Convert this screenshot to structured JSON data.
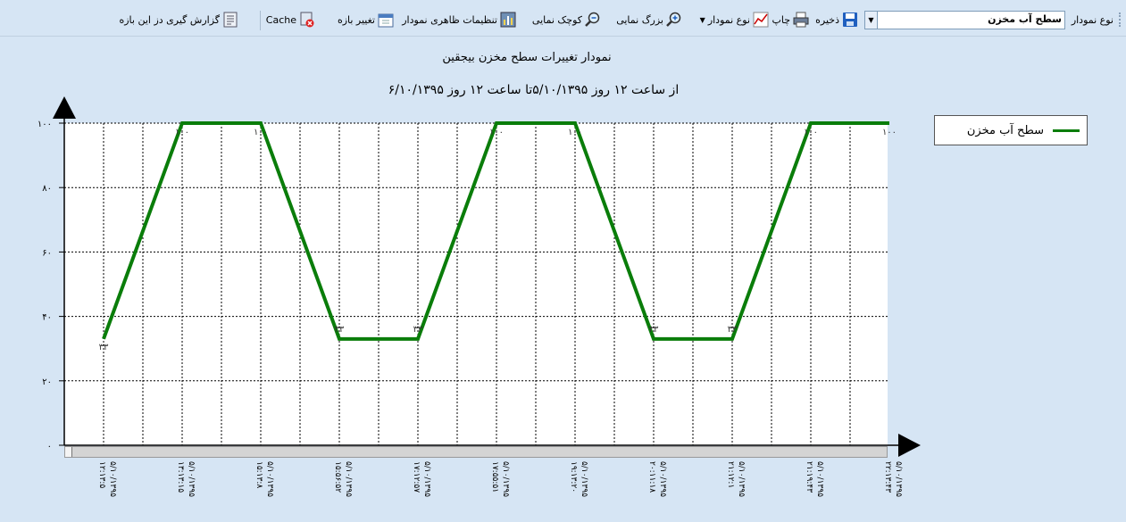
{
  "toolbar": {
    "chart_type_label": "نوع نمودار",
    "chart_type_value": "سطح آب مخزن",
    "save_label": "ذخیره",
    "print_label": "چاپ",
    "chart_kind_label": "نوع نمودار",
    "zoom_in_label": "بزرگ نمایی",
    "zoom_out_label": "کوچک نمایی",
    "appearance_label": "تنظیمات ظاهری نمودار",
    "range_label": "تغییر بازه",
    "cache_label": "Cache",
    "report_label": "گزارش گیری دز این بازه"
  },
  "chart_data": {
    "type": "line",
    "title": "نمودار تغییرات سطح مخزن بیجقین",
    "subtitle": "از ساعت  ۱۲ روز ۵/۱۰/۱۳۹۵تا ساعت  ۱۲ روز ۶/۱۰/۱۳۹۵",
    "ylim": [
      0,
      100
    ],
    "y_ticks": [
      "۰",
      "۲۰",
      "۴۰",
      "۶۰",
      "۸۰",
      "۱۰۰"
    ],
    "y_tick_values": [
      0,
      20,
      40,
      60,
      80,
      100
    ],
    "grid": true,
    "legend_position": "top-right",
    "x_ticks": [
      {
        "time": "۱۲:۱۳:۵",
        "date": "۵/۱۰/۱۳۹۵"
      },
      {
        "time": "۱۳:۱۳:۱۵",
        "date": "۵/۱۰/۱۳۹۵"
      },
      {
        "time": "۱۵:۱۳:۸",
        "date": "۵/۱۰/۱۳۹۵"
      },
      {
        "time": "۱۵:۵۶:۵۲",
        "date": "۵/۱۰/۱۳۹۵"
      },
      {
        "time": "۱۷:۱۲:۵۷",
        "date": "۵/۱۰/۱۳۹۵"
      },
      {
        "time": "۱۷:۵۵:۵۱",
        "date": "۵/۱۰/۱۳۹۵"
      },
      {
        "time": "۱۹:۱۳:۲۰",
        "date": "۵/۱۰/۱۳۹۵"
      },
      {
        "time": "۲۰:۱۱:۱۸",
        "date": "۵/۱۰/۱۳۹۵"
      },
      {
        "time": "۲۱:۱۲:۱",
        "date": "۵/۱۰/۱۳۹۵"
      },
      {
        "time": "۲۱:۱۹:۴۳",
        "date": "۵/۱۰/۱۳۹۵"
      },
      {
        "time": "۲۲:۱۳:۴۳",
        "date": "۵/۱۰/۱۳۹۵"
      }
    ],
    "series": [
      {
        "name": "سطح آب مخزن",
        "color": "#0a7d0a",
        "x_index": [
          0,
          1,
          2,
          3,
          4,
          5,
          6,
          7,
          8,
          9,
          10
        ],
        "values": [
          33,
          100,
          100,
          33,
          33,
          100,
          100,
          33,
          33,
          100,
          100
        ],
        "labels": [
          "۳۳",
          "۱۰۰",
          "۱۰۰",
          "۳۳",
          "۳۳",
          "۱۰۰",
          "۱۰۰",
          "۳۳",
          "۳۳",
          "۱۰۰",
          "۱۰۰"
        ]
      }
    ]
  }
}
